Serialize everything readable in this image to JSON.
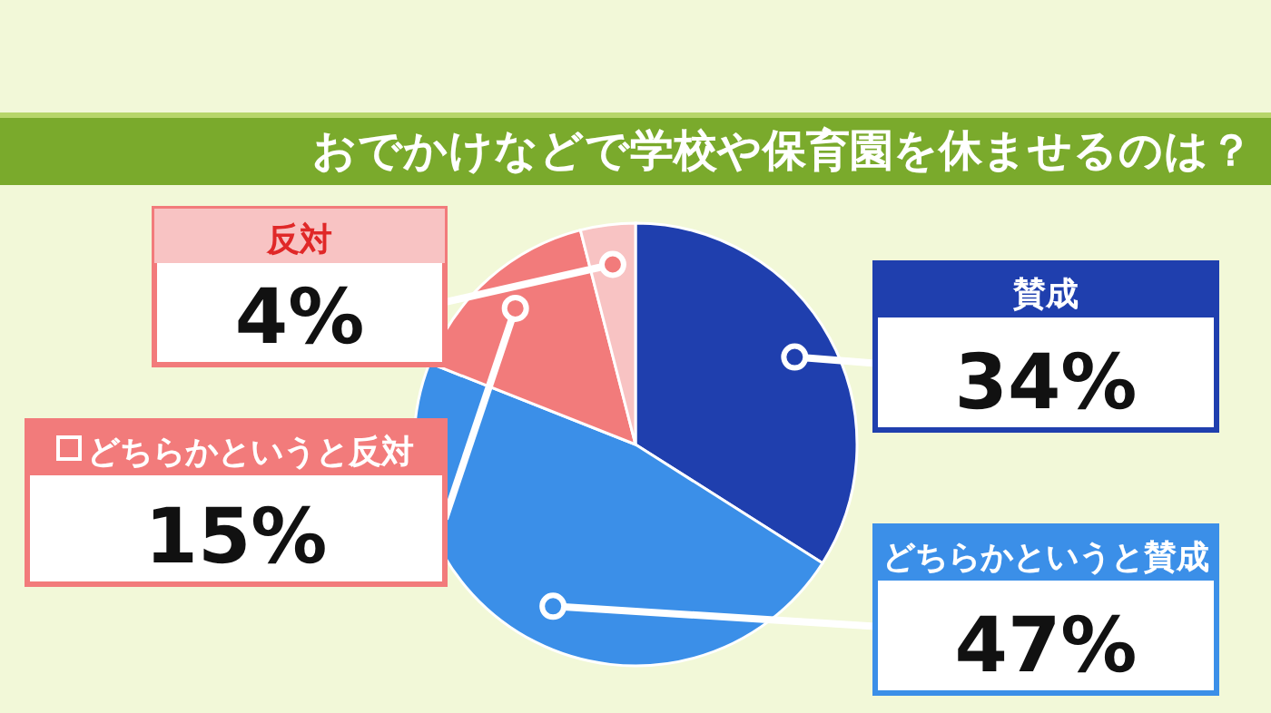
{
  "chart_data": {
    "type": "pie",
    "title": "おでかけなどで学校や保育園を休ませるのは？",
    "categories": [
      "賛成",
      "どちらかというと賛成",
      "どちらかというと反対",
      "反対"
    ],
    "values": [
      34,
      47,
      15,
      4
    ],
    "colors": [
      "#1f3fae",
      "#3b8fe8",
      "#f27b7b",
      "#f8c3c3"
    ],
    "value_labels": [
      "34%",
      "47%",
      "15%",
      "4%"
    ]
  }
}
